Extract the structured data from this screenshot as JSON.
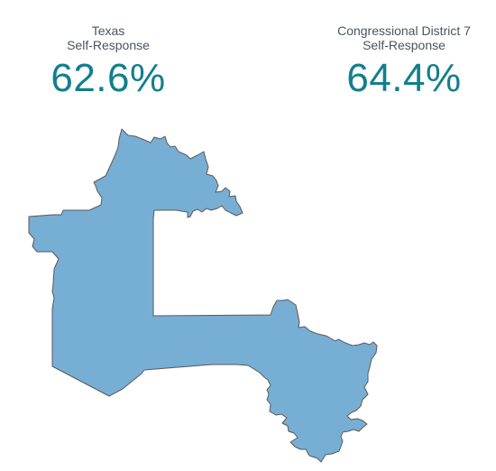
{
  "texas": {
    "name": "Texas",
    "label": "Self-Response",
    "rate": "62.6%"
  },
  "district": {
    "name": "Congressional District 7",
    "label": "Self-Response",
    "rate": "64.4%"
  },
  "map": {
    "fill_color": "#77aed4",
    "stroke_color": "#5a5a5a"
  }
}
